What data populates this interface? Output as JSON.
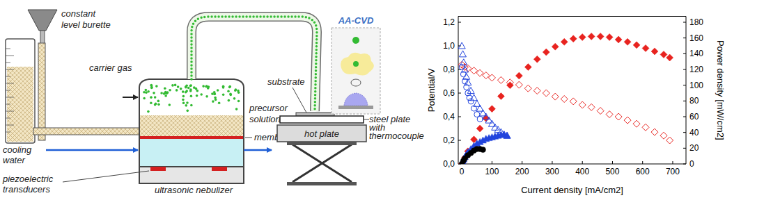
{
  "diagram": {
    "burette": [
      "constant",
      "level burette"
    ],
    "carrier_gas": [
      "carrier gas"
    ],
    "precursor": [
      "precursor",
      "solution"
    ],
    "membrane": [
      "membrane"
    ],
    "cooling": [
      "cooling",
      "water"
    ],
    "piezo": [
      "piezoelectric",
      "transducers"
    ],
    "nebulizer": [
      "ultrasonic nebulizer"
    ],
    "substrate": [
      "substrate"
    ],
    "steel_plate": [
      "steel plate",
      "with",
      "thermocouple"
    ],
    "hot_plate": [
      "hot plate"
    ],
    "callout": [
      "AA-CVD"
    ]
  },
  "chart_data": {
    "type": "scatter",
    "x_label": "Current density [mA/cm2]",
    "y_label": "Potential/V",
    "y2_label": "Power density [mW/cm2]",
    "xlim": [
      -12,
      744
    ],
    "xticks": [
      0,
      100,
      200,
      300,
      400,
      500,
      600,
      700
    ],
    "ylim": [
      0,
      1.25
    ],
    "yticks": [
      {
        "value": 0,
        "label": "0,0"
      },
      {
        "value": 0.2,
        "label": "0,2"
      },
      {
        "value": 0.4,
        "label": "0,4"
      },
      {
        "value": 0.6,
        "label": "0,6"
      },
      {
        "value": 0.8,
        "label": "0,8"
      },
      {
        "value": 1.0,
        "label": "1,0"
      },
      {
        "value": 1.2,
        "label": "1,2"
      }
    ],
    "y2lim": [
      0,
      187.5
    ],
    "y2ticks": [
      0,
      20,
      40,
      60,
      80,
      100,
      120,
      140,
      160,
      180
    ],
    "grid": false,
    "series": [
      {
        "color": "#e8231f",
        "marker": "open-diamond",
        "axis": "y",
        "x": [
          0,
          10,
          20,
          40,
          60,
          80,
          100,
          130,
          160,
          190,
          220,
          250,
          280,
          310,
          340,
          370,
          400,
          430,
          460,
          490,
          520,
          550,
          580,
          610,
          640,
          670,
          690
        ],
        "values": [
          0.84,
          0.82,
          0.81,
          0.79,
          0.77,
          0.75,
          0.73,
          0.71,
          0.69,
          0.67,
          0.64,
          0.62,
          0.6,
          0.57,
          0.55,
          0.53,
          0.5,
          0.48,
          0.45,
          0.42,
          0.4,
          0.37,
          0.34,
          0.31,
          0.27,
          0.24,
          0.2
        ]
      },
      {
        "color": "#e8231f",
        "marker": "diamond",
        "axis": "y2",
        "x": [
          0,
          10,
          20,
          40,
          60,
          80,
          100,
          130,
          160,
          190,
          220,
          250,
          280,
          310,
          340,
          370,
          400,
          430,
          460,
          490,
          520,
          550,
          580,
          610,
          640,
          670,
          690
        ],
        "values": [
          0,
          8,
          16,
          31,
          45,
          58,
          70,
          86,
          100,
          112,
          123,
          133,
          142,
          149,
          155,
          159,
          161,
          162,
          162,
          161,
          158,
          155,
          151,
          147,
          143,
          139,
          135
        ]
      },
      {
        "color": "#2244dd",
        "marker": "open-triangle",
        "axis": "y",
        "x": [
          0,
          3,
          6,
          10,
          15,
          20,
          30,
          40,
          50,
          60,
          70,
          80,
          90,
          100,
          110,
          120,
          130,
          140,
          150
        ],
        "values": [
          1.0,
          0.93,
          0.86,
          0.8,
          0.74,
          0.69,
          0.62,
          0.56,
          0.51,
          0.47,
          0.43,
          0.4,
          0.37,
          0.34,
          0.31,
          0.29,
          0.27,
          0.25,
          0.24
        ]
      },
      {
        "color": "#2244dd",
        "marker": "triangle",
        "axis": "y2",
        "x": [
          0,
          3,
          6,
          10,
          15,
          20,
          30,
          40,
          50,
          60,
          70,
          80,
          90,
          100,
          110,
          120,
          130,
          140,
          150
        ],
        "values": [
          0,
          3,
          6,
          9,
          12,
          15,
          19,
          23,
          26,
          28,
          30,
          32,
          33,
          34,
          35,
          36,
          37,
          37,
          36
        ]
      },
      {
        "color": "#2244dd",
        "marker": "open-circle",
        "axis": "y",
        "x": [
          0,
          5,
          10,
          15,
          20,
          25,
          30,
          40,
          50,
          60
        ],
        "values": [
          0.82,
          0.76,
          0.7,
          0.65,
          0.6,
          0.56,
          0.53,
          0.47,
          0.42,
          0.38
        ]
      },
      {
        "color": "#000000",
        "marker": "circle",
        "axis": "y2",
        "x": [
          0,
          5,
          10,
          20,
          30,
          40,
          50,
          60,
          70
        ],
        "values": [
          0,
          4,
          7,
          11,
          14,
          17,
          19,
          19,
          18
        ]
      }
    ]
  }
}
